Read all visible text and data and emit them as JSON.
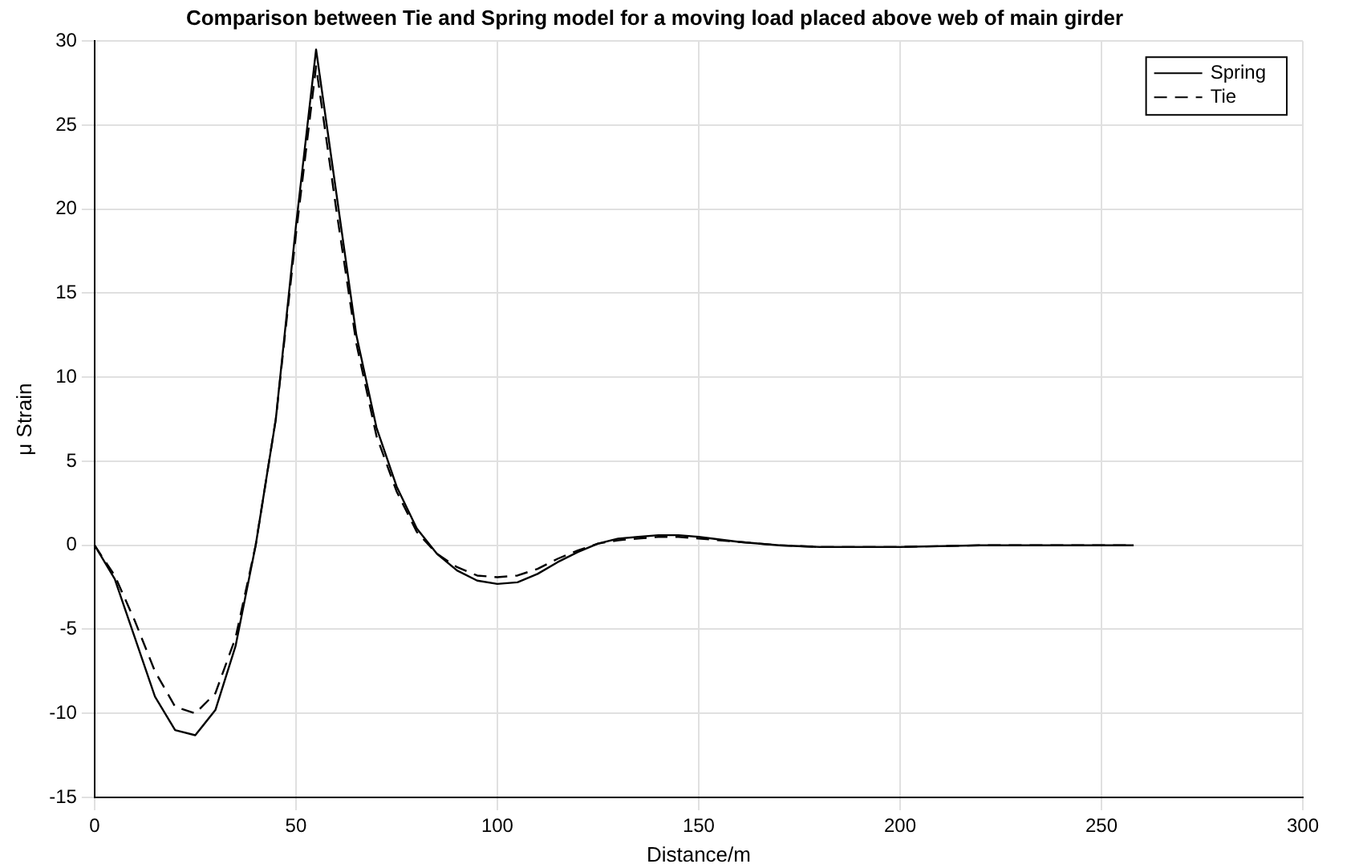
{
  "chart_data": {
    "type": "line",
    "title": "Comparison between Tie and Spring model for a moving load placed above web of main girder",
    "xlabel": "Distance/m",
    "ylabel": "μ Strain",
    "x": [
      0,
      5,
      10,
      15,
      20,
      25,
      30,
      35,
      40,
      45,
      50,
      55,
      60,
      65,
      70,
      75,
      80,
      85,
      90,
      95,
      100,
      105,
      110,
      115,
      120,
      125,
      130,
      135,
      140,
      145,
      150,
      160,
      170,
      180,
      190,
      200,
      220,
      240,
      258
    ],
    "series": [
      {
        "name": "Spring",
        "color": "#000000",
        "line_style": "solid",
        "values": [
          0,
          -2,
          -5.5,
          -9,
          -11,
          -11.3,
          -9.8,
          -6,
          0,
          7.5,
          19,
          29.5,
          21,
          12.5,
          7,
          3.5,
          1,
          -0.5,
          -1.5,
          -2.1,
          -2.3,
          -2.2,
          -1.7,
          -1,
          -0.4,
          0.1,
          0.4,
          0.5,
          0.6,
          0.6,
          0.5,
          0.2,
          0,
          -0.1,
          -0.1,
          -0.1,
          0,
          0,
          0
        ]
      },
      {
        "name": "Tie",
        "color": "#000000",
        "line_style": "dashed",
        "values": [
          0,
          -1.8,
          -4.5,
          -7.5,
          -9.6,
          -10,
          -8.8,
          -5.5,
          0,
          7.5,
          18.5,
          28.5,
          20,
          12,
          6.5,
          3.2,
          0.8,
          -0.5,
          -1.3,
          -1.8,
          -1.9,
          -1.8,
          -1.4,
          -0.8,
          -0.3,
          0.1,
          0.3,
          0.4,
          0.5,
          0.5,
          0.4,
          0.2,
          0,
          -0.1,
          -0.1,
          -0.1,
          0,
          0,
          0
        ]
      }
    ],
    "xlim": [
      0,
      300
    ],
    "xticks": [
      0,
      50,
      100,
      150,
      200,
      250,
      300
    ],
    "ylim": [
      -15,
      30
    ],
    "yticks": [
      -15,
      -10,
      -5,
      0,
      5,
      10,
      15,
      20,
      25,
      30
    ],
    "grid": true,
    "legend": "top right",
    "marker": "none"
  }
}
